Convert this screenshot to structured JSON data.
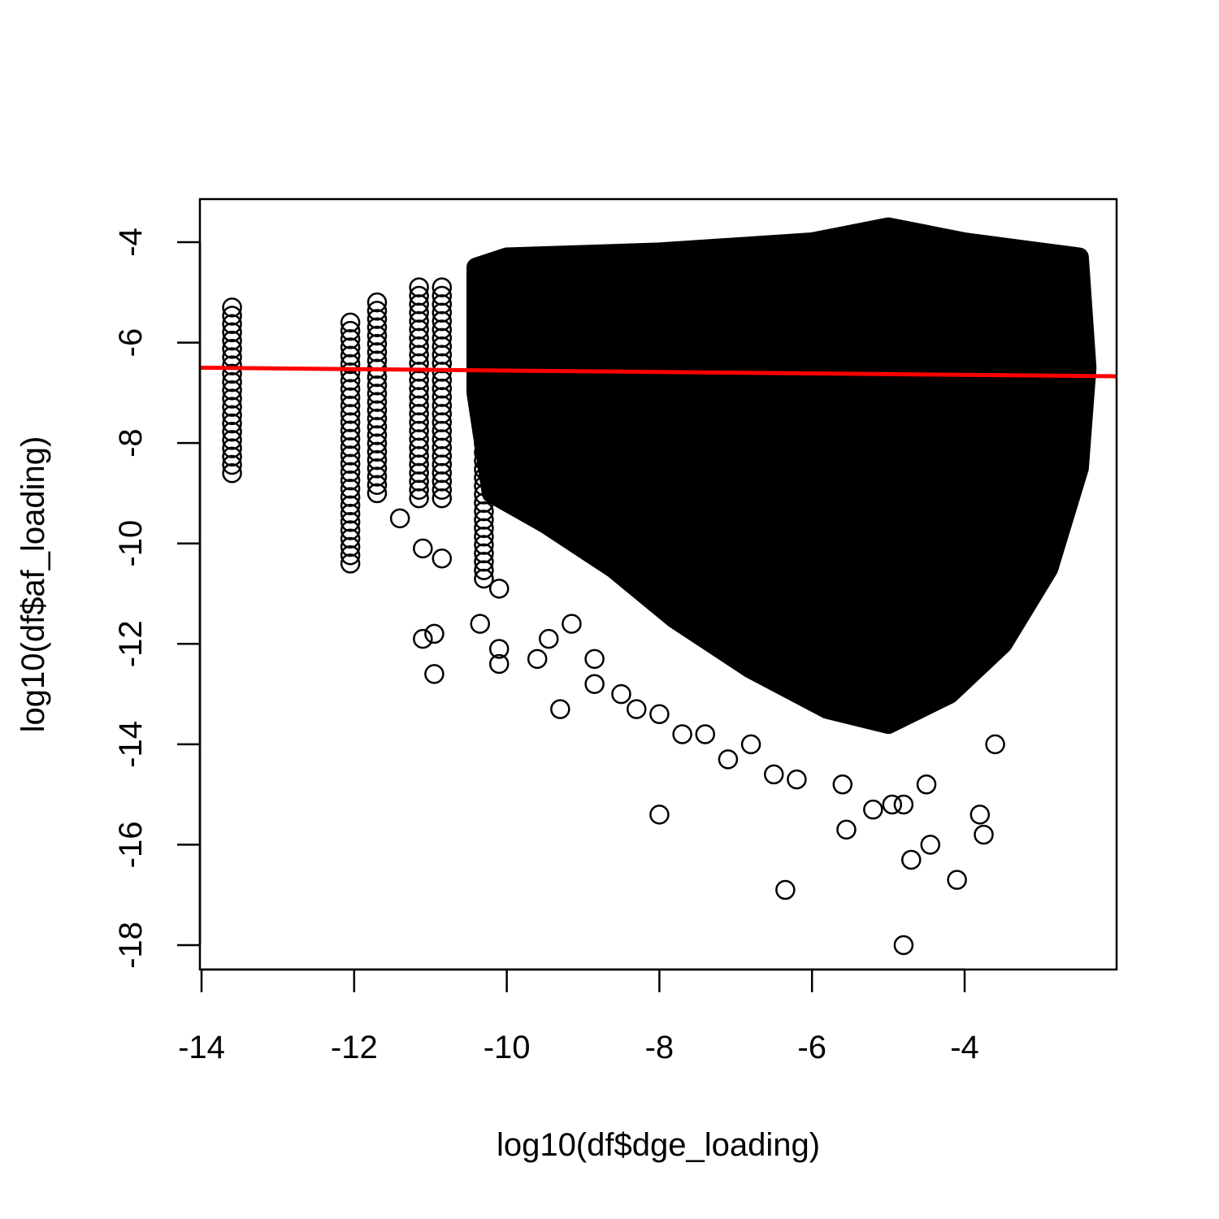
{
  "chart_data": {
    "type": "scatter",
    "title": "",
    "xlabel": "log10(df$dge_loading)",
    "ylabel": "log10(df$af_loading)",
    "xlim": [
      -14,
      -2.3
    ],
    "ylim": [
      -18.5,
      -3.3
    ],
    "xticks": [
      -14,
      -12,
      -10,
      -8,
      -6,
      -4
    ],
    "yticks": [
      -4,
      -6,
      -8,
      -10,
      -12,
      -14,
      -16,
      -18
    ],
    "xtick_labels": [
      "-14",
      "-12",
      "-10",
      "-8",
      "-6",
      "-4"
    ],
    "ytick_labels": [
      "-4",
      "-6",
      "-8",
      "-10",
      "-12",
      "-14",
      "-16",
      "-18"
    ],
    "grid": false,
    "marker": "open-circle",
    "dense_region_outline": [
      [
        -10.0,
        -4.3
      ],
      [
        -8.0,
        -4.2
      ],
      [
        -6.0,
        -4.0
      ],
      [
        -5.0,
        -3.7
      ],
      [
        -4.0,
        -4.0
      ],
      [
        -2.5,
        -4.3
      ],
      [
        -2.4,
        -6.5
      ],
      [
        -2.5,
        -8.5
      ],
      [
        -2.9,
        -10.5
      ],
      [
        -3.5,
        -12.0
      ],
      [
        -4.2,
        -13.0
      ],
      [
        -5.0,
        -13.6
      ],
      [
        -5.8,
        -13.3
      ],
      [
        -6.8,
        -12.5
      ],
      [
        -7.8,
        -11.5
      ],
      [
        -8.6,
        -10.5
      ],
      [
        -9.5,
        -9.6
      ],
      [
        -10.2,
        -9.0
      ],
      [
        -10.4,
        -7.0
      ],
      [
        -10.4,
        -4.5
      ]
    ],
    "columns": [
      {
        "x": -13.6,
        "ymin": -8.6,
        "ymax": -5.3
      },
      {
        "x": -12.05,
        "ymin": -10.4,
        "ymax": -5.6
      },
      {
        "x": -11.7,
        "ymin": -9.0,
        "ymax": -5.2
      },
      {
        "x": -11.15,
        "ymin": -9.1,
        "ymax": -4.9
      },
      {
        "x": -10.85,
        "ymin": -9.1,
        "ymax": -4.9
      },
      {
        "x": -10.3,
        "ymin": -10.7,
        "ymax": -4.5
      }
    ],
    "outliers": [
      [
        -11.4,
        -9.5
      ],
      [
        -11.1,
        -10.1
      ],
      [
        -10.85,
        -10.3
      ],
      [
        -11.1,
        -11.9
      ],
      [
        -10.95,
        -11.8
      ],
      [
        -10.95,
        -12.6
      ],
      [
        -10.35,
        -11.6
      ],
      [
        -10.1,
        -12.1
      ],
      [
        -10.1,
        -12.4
      ],
      [
        -10.1,
        -10.9
      ],
      [
        -9.45,
        -11.9
      ],
      [
        -9.6,
        -12.3
      ],
      [
        -9.15,
        -11.6
      ],
      [
        -9.3,
        -13.3
      ],
      [
        -8.85,
        -12.3
      ],
      [
        -8.85,
        -12.8
      ],
      [
        -8.5,
        -13.0
      ],
      [
        -8.3,
        -13.3
      ],
      [
        -8.0,
        -13.4
      ],
      [
        -8.0,
        -15.4
      ],
      [
        -7.7,
        -13.8
      ],
      [
        -7.4,
        -13.8
      ],
      [
        -7.1,
        -14.3
      ],
      [
        -6.8,
        -14.0
      ],
      [
        -6.5,
        -14.6
      ],
      [
        -6.2,
        -14.7
      ],
      [
        -6.35,
        -16.9
      ],
      [
        -5.6,
        -14.8
      ],
      [
        -5.55,
        -15.7
      ],
      [
        -5.2,
        -15.3
      ],
      [
        -4.95,
        -15.2
      ],
      [
        -4.8,
        -15.2
      ],
      [
        -4.7,
        -16.3
      ],
      [
        -4.45,
        -16.0
      ],
      [
        -4.1,
        -16.7
      ],
      [
        -3.8,
        -15.4
      ],
      [
        -3.75,
        -15.8
      ],
      [
        -4.8,
        -18.0
      ],
      [
        -3.6,
        -14.0
      ],
      [
        -4.5,
        -14.8
      ]
    ],
    "regression_line": {
      "x": [
        -14.0,
        -2.3
      ],
      "y": [
        -6.5,
        -6.67
      ],
      "color": "#ff0000"
    }
  }
}
